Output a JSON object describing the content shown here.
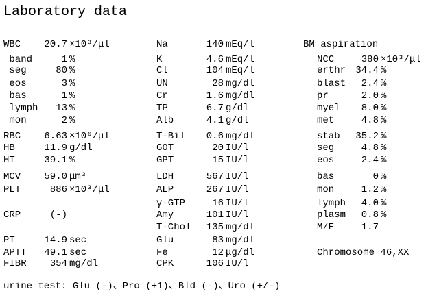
{
  "title": "Laboratory data",
  "blood": [
    {
      "label": "WBC",
      "value": "20.7",
      "unit": "×10³/μl"
    },
    {
      "label": " band",
      "value": "1",
      "unit": "%"
    },
    {
      "label": " seg",
      "value": "80",
      "unit": "%"
    },
    {
      "label": " eos",
      "value": "3",
      "unit": "%"
    },
    {
      "label": " bas",
      "value": "1",
      "unit": "%"
    },
    {
      "label": " lymph",
      "value": "13",
      "unit": "%"
    },
    {
      "label": " mon",
      "value": "2",
      "unit": "%"
    },
    {
      "label": "RBC",
      "value": "6.63",
      "unit": "×10⁶/μl"
    },
    {
      "label": "HB",
      "value": "11.9",
      "unit": "g/dl"
    },
    {
      "label": "HT",
      "value": "39.1",
      "unit": "%"
    },
    {
      "label": "MCV",
      "value": "59.0",
      "unit": "μm³"
    },
    {
      "label": "PLT",
      "value": "886",
      "unit": "×10³/μl"
    },
    {
      "label": "CRP",
      "value": "(-)",
      "unit": ""
    },
    {
      "label": "PT",
      "value": "14.9",
      "unit": "sec"
    },
    {
      "label": "APTT",
      "value": "49.1",
      "unit": "sec"
    },
    {
      "label": "FIBR",
      "value": "354",
      "unit": "mg/dl"
    }
  ],
  "chemistry": [
    {
      "label": "Na",
      "value": "140",
      "unit": "mEq/l"
    },
    {
      "label": "K",
      "value": "4.6",
      "unit": "mEq/l"
    },
    {
      "label": "Cl",
      "value": "104",
      "unit": "mEq/l"
    },
    {
      "label": "UN",
      "value": "28",
      "unit": "mg/dl"
    },
    {
      "label": "Cr",
      "value": "1.6",
      "unit": "mg/dl"
    },
    {
      "label": "TP",
      "value": "6.7",
      "unit": "g/dl"
    },
    {
      "label": "Alb",
      "value": "4.1",
      "unit": "g/dl"
    },
    {
      "label": "T-Bil",
      "value": "0.6",
      "unit": "mg/dl"
    },
    {
      "label": "GOT",
      "value": "20",
      "unit": "IU/l"
    },
    {
      "label": "GPT",
      "value": "15",
      "unit": "IU/l"
    },
    {
      "label": "LDH",
      "value": "567",
      "unit": "IU/l"
    },
    {
      "label": "ALP",
      "value": "267",
      "unit": "IU/l"
    },
    {
      "label": "γ-GTP",
      "value": "16",
      "unit": "IU/l"
    },
    {
      "label": "Amy",
      "value": "101",
      "unit": "IU/l"
    },
    {
      "label": "T-Chol",
      "value": "135",
      "unit": "mg/dl"
    },
    {
      "label": "Glu",
      "value": "83",
      "unit": "mg/dl"
    },
    {
      "label": "Fe",
      "value": "12",
      "unit": "μg/dl"
    },
    {
      "label": "CPK",
      "value": "106",
      "unit": "IU/l"
    }
  ],
  "bm": {
    "heading": "BM aspiration",
    "rows": [
      {
        "label": "NCC",
        "value": "380",
        "unit": "×10³/μl"
      },
      {
        "label": "erthr",
        "value": "34.4",
        "unit": "%"
      },
      {
        "label": "blast",
        "value": "2.4",
        "unit": "%"
      },
      {
        "label": "pr",
        "value": "2.0",
        "unit": "%"
      },
      {
        "label": "myel",
        "value": "8.0",
        "unit": "%"
      },
      {
        "label": "met",
        "value": "4.8",
        "unit": "%"
      },
      {
        "label": "stab",
        "value": "35.2",
        "unit": "%"
      },
      {
        "label": "seg",
        "value": "4.8",
        "unit": "%"
      },
      {
        "label": "eos",
        "value": "2.4",
        "unit": "%"
      },
      {
        "label": "bas",
        "value": "0",
        "unit": "%"
      },
      {
        "label": "mon",
        "value": "1.2",
        "unit": "%"
      },
      {
        "label": "lymph",
        "value": "4.0",
        "unit": "%"
      },
      {
        "label": "plasm",
        "value": "0.8",
        "unit": "%"
      },
      {
        "label": "M/E",
        "value": "1.7",
        "unit": ""
      }
    ],
    "chromosome": "Chromosome 46,XX"
  },
  "urine": "urine test: Glu (-)、Pro (+1)、Bld (-)、Uro (+/-)"
}
